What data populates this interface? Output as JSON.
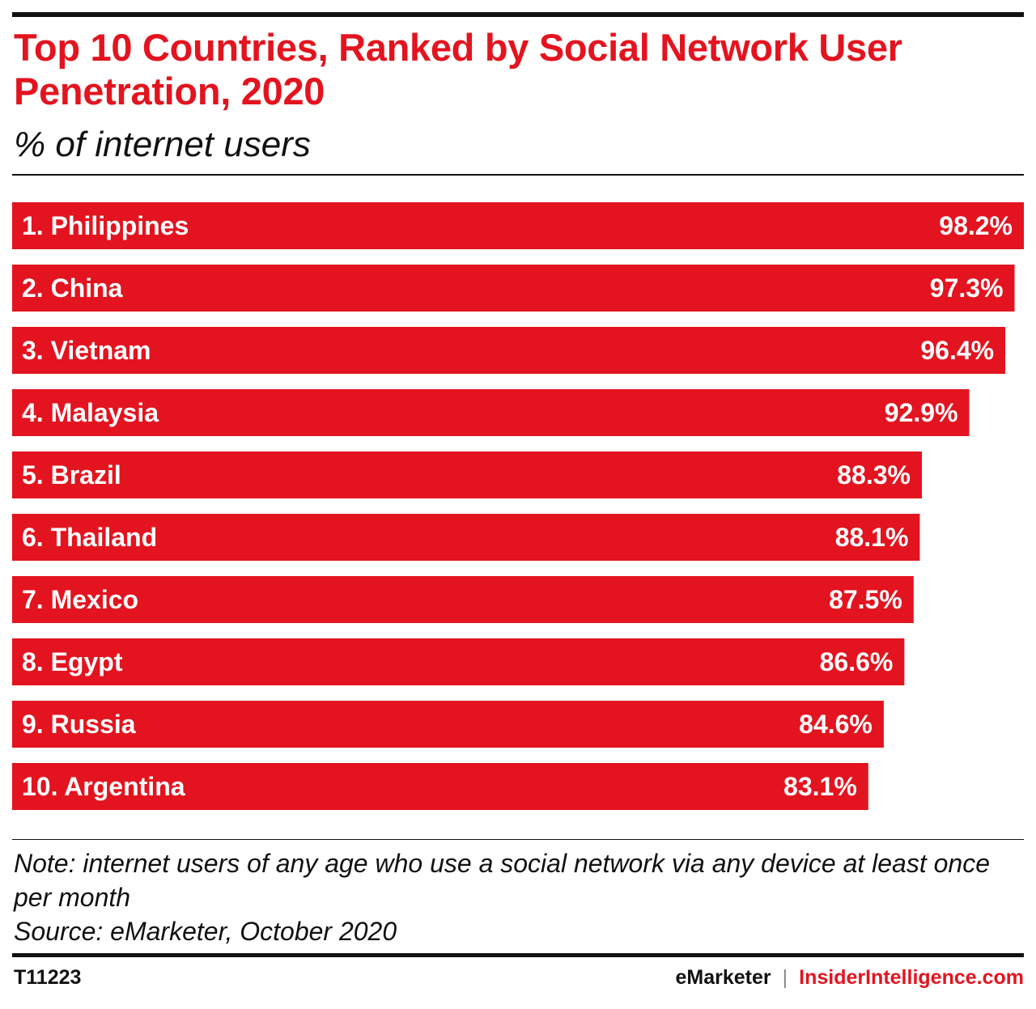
{
  "chart_data": {
    "type": "bar",
    "orientation": "horizontal",
    "title": "Top 10 Countries, Ranked by Social Network User Penetration, 2020",
    "subtitle": "% of internet users",
    "categories": [
      "1. Philippines",
      "2. China",
      "3. Vietnam",
      "4. Malaysia",
      "5. Brazil",
      "6. Thailand",
      "7. Mexico",
      "8. Egypt",
      "9. Russia",
      "10. Argentina"
    ],
    "values": [
      98.2,
      97.3,
      96.4,
      92.9,
      88.3,
      88.1,
      87.5,
      86.6,
      84.6,
      83.1
    ],
    "value_labels": [
      "98.2%",
      "97.3%",
      "96.4%",
      "92.9%",
      "88.3%",
      "88.1%",
      "87.5%",
      "86.6%",
      "84.6%",
      "83.1%"
    ],
    "xlim": [
      0,
      98.2
    ],
    "bar_color": "#e3141f",
    "grid": false,
    "legend": "none"
  },
  "note": {
    "text": "Note: internet users of any age who use a social network via any device at least once per month",
    "source": "Source: eMarketer, October 2020"
  },
  "footer": {
    "id": "T11223",
    "brand": "eMarketer",
    "separator": "|",
    "site": "InsiderIntelligence.com"
  },
  "colors": {
    "accent": "#e3141f",
    "text": "#111111"
  }
}
